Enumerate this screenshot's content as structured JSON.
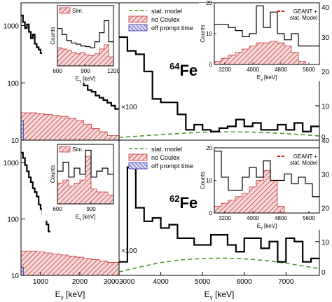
{
  "chart_data": [
    {
      "type": "histogram",
      "panel": "top-left",
      "x_range": [
        500,
        3000
      ],
      "y_scale": "log",
      "y_range": [
        10,
        2500
      ],
      "y_ticks": [
        "1000",
        "100",
        "10"
      ],
      "data_step": {
        "x": [
          500,
          550,
          600,
          650,
          700,
          750,
          800,
          850,
          900,
          950,
          1000,
          1100,
          1200,
          1300,
          1400,
          1500,
          1600,
          1700,
          1800,
          1900,
          2000,
          2100,
          2200,
          2300,
          2400,
          2500,
          2600,
          2700,
          2800,
          2900
        ],
        "y": [
          1500,
          1150,
          900,
          1050,
          780,
          600,
          700,
          480,
          420,
          380,
          330,
          300,
          270,
          220,
          200,
          150,
          140,
          150,
          120,
          120,
          110,
          90,
          75,
          70,
          60,
          55,
          50,
          45,
          40,
          35
        ]
      },
      "red_fill": {
        "x": [
          500,
          700,
          900,
          1100,
          1300,
          1500,
          1700,
          1900,
          2100,
          2300,
          2500,
          2700
        ],
        "y": [
          30,
          30,
          29,
          28,
          27,
          26,
          24,
          22,
          19,
          16,
          14,
          12
        ]
      },
      "blue_fill": {
        "x": [
          500
        ],
        "y": [
          22
        ],
        "x_end": 560
      }
    },
    {
      "type": "histogram",
      "panel": "top-right",
      "x_range": [
        3000,
        7800
      ],
      "y_scale": "linear",
      "y_range": [
        0,
        40
      ],
      "y_ticks": [
        "40",
        "30",
        "20",
        "10",
        "0"
      ],
      "annotation_scale": "×100",
      "label_base": "64",
      "label_element": "Fe",
      "data_step": {
        "x": [
          3000,
          3200,
          3400,
          3600,
          3800,
          4000,
          4200,
          4400,
          4600,
          4800,
          5000,
          5200,
          5400,
          5600,
          5800,
          6000,
          6200,
          6400,
          6600,
          6800,
          7000,
          7200,
          7400,
          7600
        ],
        "y": [
          30,
          26,
          25,
          20,
          12,
          11,
          11,
          7.5,
          3,
          4.5,
          3,
          2.5,
          3.5,
          4,
          6,
          4,
          5,
          3,
          3,
          4.5,
          3,
          5,
          2.5,
          4
        ]
      },
      "stat_model": {
        "x": [
          3000,
          3500,
          4000,
          4500,
          5000,
          5500,
          6000,
          6500,
          7000,
          7500,
          7800
        ],
        "y": [
          0.8,
          1.2,
          1.6,
          2,
          2.3,
          2.4,
          2.4,
          2.2,
          1.9,
          1.5,
          1.2
        ]
      },
      "legend": [
        "stat. model",
        "no Coulex",
        "off prompt time"
      ]
    },
    {
      "type": "histogram",
      "panel": "bottom-left",
      "x_range": [
        500,
        3000
      ],
      "y_scale": "log",
      "y_range": [
        10,
        2500
      ],
      "y_ticks": [
        "1000",
        "100",
        "10"
      ],
      "x_ticks": [
        "1000",
        "2000",
        "3000"
      ],
      "xlabel_main": "E",
      "xlabel_sub": "γ",
      "xlabel_unit": " [keV]",
      "data_step": {
        "x": [
          500,
          550,
          600,
          650,
          700,
          750,
          800,
          850,
          900,
          950,
          1000,
          1050,
          1100,
          1150,
          1200
        ],
        "y": [
          1500,
          1200,
          900,
          700,
          550,
          450,
          350,
          300,
          250,
          180,
          150,
          120,
          100,
          80,
          60
        ]
      },
      "red_fill": {
        "x": [
          500,
          700,
          900,
          1100,
          1300,
          1500,
          1700,
          1900,
          2100,
          2300,
          2500,
          2700
        ],
        "y": [
          27,
          27,
          26,
          25,
          24,
          23,
          22,
          21,
          20,
          19,
          18,
          17
        ]
      },
      "blue_fill": {
        "x": [
          500
        ],
        "y": [
          14
        ],
        "x_end": 560
      }
    },
    {
      "type": "histogram",
      "panel": "bottom-right",
      "x_range": [
        3000,
        7800
      ],
      "y_scale": "linear",
      "y_range": [
        0,
        40
      ],
      "y_ticks": [
        "40",
        "30",
        "20",
        "10",
        "0"
      ],
      "x_ticks": [
        "3000",
        "4000",
        "5000",
        "6000",
        "7000"
      ],
      "xlabel_main": "E",
      "xlabel_sub": "γ",
      "xlabel_unit": " [keV]",
      "annotation_scale": "×100",
      "label_base": "62",
      "label_element": "Fe",
      "data_step": {
        "x": [
          3000,
          3200,
          3400,
          3600,
          3800,
          4000,
          4200,
          4400,
          4600,
          4800,
          5000,
          5200,
          5400,
          5600,
          5800,
          6000,
          6200,
          6400,
          6600,
          6800,
          7000,
          7200,
          7400,
          7600
        ],
        "y": [
          4,
          32,
          20,
          16,
          17,
          14,
          15,
          11,
          11,
          9,
          9,
          12,
          12,
          9,
          7,
          11,
          11,
          8,
          10,
          4,
          11,
          10,
          4,
          5
        ]
      },
      "stat_model": {
        "x": [
          3000,
          3500,
          4000,
          4500,
          5000,
          5500,
          6000,
          6500,
          7000,
          7500,
          7800
        ],
        "y": [
          1,
          2.5,
          3.8,
          4.6,
          5,
          5.1,
          4.9,
          4.4,
          3.6,
          2.6,
          2
        ]
      },
      "legend": [
        "stat. model",
        "no Coulex",
        "off prompt time"
      ]
    }
  ],
  "insets": [
    {
      "panel": "top-left",
      "legend": "Sim.",
      "ylabel": "Counts",
      "xlabel_main": "E",
      "xlabel_sub": "γ",
      "xlabel_unit": " [keV]",
      "x_ticks": [
        "600",
        "900",
        "1200"
      ],
      "x_range": [
        600,
        1200
      ],
      "y_range": [
        0,
        1
      ],
      "data_step": {
        "x": [
          600,
          650,
          700,
          750,
          800,
          850,
          900,
          950,
          1000,
          1050,
          1100,
          1150
        ],
        "y": [
          0.62,
          0.52,
          0.42,
          0.38,
          0.36,
          0.33,
          0.32,
          0.3,
          0.4,
          0.55,
          0.75,
          0.4
        ]
      },
      "sim_fill": {
        "x": [
          600,
          650,
          700,
          750,
          800,
          850,
          900,
          950,
          1000,
          1050,
          1100,
          1150
        ],
        "y": [
          0.3,
          0.28,
          0.26,
          0.22,
          0.2,
          0.22,
          0.18,
          0.17,
          0.2,
          0.28,
          0.35,
          0.15
        ]
      }
    },
    {
      "panel": "top-right",
      "legend": [
        "GEANT +",
        "stat. Model"
      ],
      "ylabel": "Counts",
      "xlabel_main": "E",
      "xlabel_sub": "γ",
      "xlabel_unit": " [keV]",
      "y_ticks": [
        "20",
        "10",
        "0"
      ],
      "x_ticks": [
        "3200",
        "4000",
        "4800",
        "5600"
      ],
      "x_range": [
        2900,
        5900
      ],
      "y_range": [
        0,
        20
      ],
      "data_step": {
        "x": [
          2900,
          3100,
          3300,
          3500,
          3700,
          3900,
          4100,
          4300,
          4500,
          4700,
          4900,
          5100,
          5300,
          5500,
          5700
        ],
        "y": [
          13,
          13,
          12,
          11,
          9,
          10,
          19,
          12,
          17,
          10,
          8,
          10,
          6,
          6,
          6
        ]
      },
      "sim_fill": {
        "x": [
          2900,
          3100,
          3300,
          3500,
          3700,
          3900,
          4100,
          4300,
          4500,
          4700,
          4900,
          5100,
          5300,
          5500,
          5700
        ],
        "y": [
          1,
          2,
          3,
          4,
          5,
          6,
          7,
          7,
          7.5,
          7,
          6,
          4,
          1,
          0,
          0
        ]
      }
    },
    {
      "panel": "bottom-left",
      "legend": "Sim.",
      "ylabel": "Counts",
      "xlabel_main": "E",
      "xlabel_sub": "γ",
      "xlabel_unit": " [keV]",
      "x_ticks": [
        "600",
        "900"
      ],
      "x_range": [
        600,
        1100
      ],
      "y_range": [
        0,
        1
      ],
      "data_step": {
        "x": [
          600,
          650,
          700,
          750,
          800,
          850,
          900,
          950,
          1000,
          1050
        ],
        "y": [
          0.55,
          0.7,
          0.45,
          0.6,
          0.5,
          0.9,
          0.45,
          0.55,
          0.6,
          0.5
        ]
      },
      "sim_fill": {
        "x": [
          600,
          650,
          700,
          750,
          800,
          850,
          900,
          950,
          1000,
          1050
        ],
        "y": [
          0.35,
          0.4,
          0.3,
          0.35,
          0.4,
          0.8,
          0.25,
          0.2,
          0.2,
          0.15
        ]
      }
    },
    {
      "panel": "bottom-right",
      "legend": [
        "GEANT +",
        "stat. Model"
      ],
      "ylabel": "Counts",
      "xlabel_main": "E",
      "xlabel_sub": "γ",
      "xlabel_unit": " [keV]",
      "y_ticks": [
        "20",
        "10",
        "0"
      ],
      "x_ticks": [
        "3200",
        "4000",
        "4800",
        "5600"
      ],
      "x_range": [
        2900,
        5900
      ],
      "y_range": [
        0,
        20
      ],
      "data_step": {
        "x": [
          2900,
          3100,
          3300,
          3500,
          3700,
          3900,
          4100,
          4300,
          4500,
          4700,
          4900,
          5100,
          5300,
          5500,
          5700
        ],
        "y": [
          19,
          11,
          7,
          7,
          11,
          14,
          11,
          16,
          10,
          10,
          12,
          9,
          11,
          9,
          5
        ]
      },
      "sim_fill": {
        "x": [
          2900,
          3100,
          3300,
          3500,
          3700,
          3900,
          4100,
          4300,
          4500,
          4700,
          4900,
          5100,
          5300,
          5500,
          5700
        ],
        "y": [
          2,
          3,
          4,
          5,
          6,
          8,
          10,
          13,
          10,
          2,
          0,
          0,
          0,
          0,
          0
        ]
      }
    }
  ],
  "colors": {
    "data": "#000000",
    "sim": "#cc3333",
    "stat": "#4c9a2a",
    "blue": "#3333aa",
    "geant": "#dd1111"
  }
}
